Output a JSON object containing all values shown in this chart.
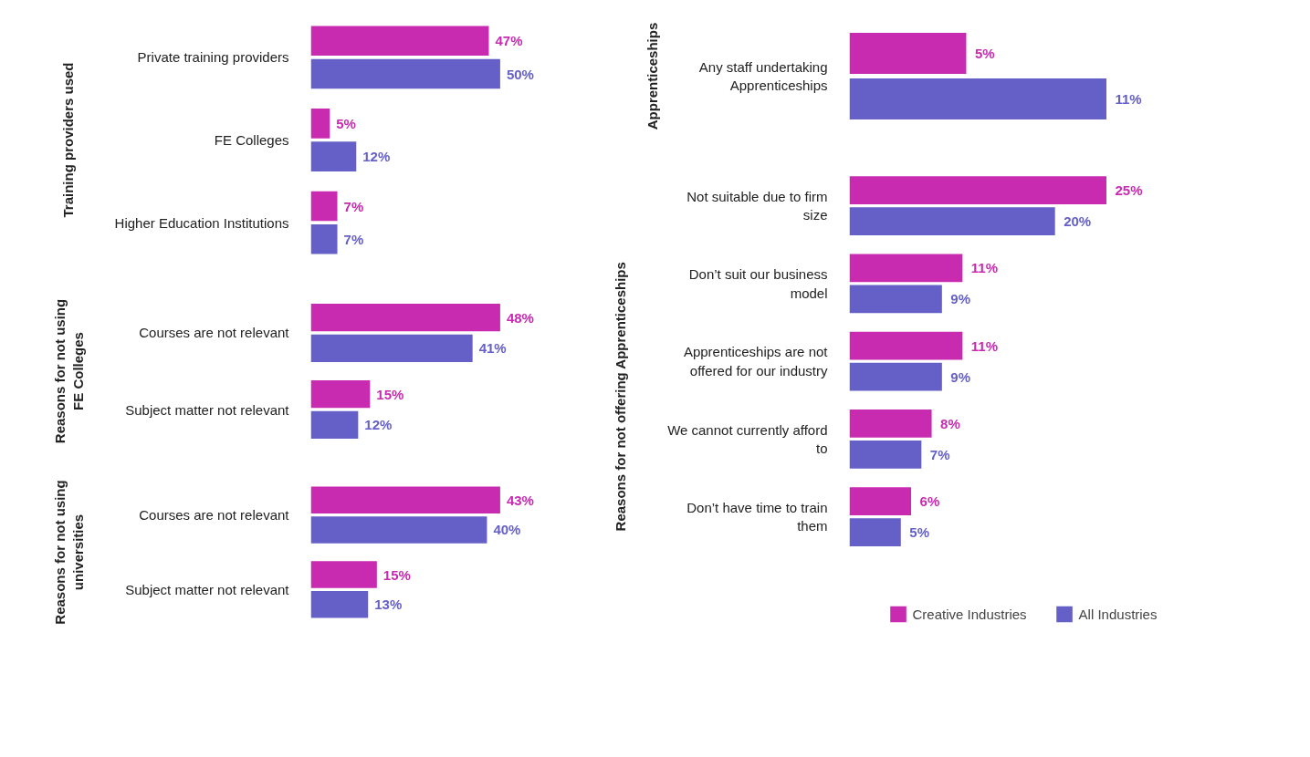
{
  "chart_data": [
    {
      "type": "bar",
      "orientation": "horizontal",
      "ylabel": "Training providers used",
      "categories": [
        "Private training providers",
        "FE Colleges",
        "Higher Education Institutions"
      ],
      "series": [
        {
          "color": "#c92bb0",
          "values": [
            47,
            5,
            7
          ],
          "value_labels": [
            "47%",
            "5%",
            "7%"
          ]
        },
        {
          "color": "#6560c8",
          "values": [
            50,
            12,
            7
          ],
          "value_labels": [
            "50%",
            "12%",
            "7%"
          ]
        }
      ]
    },
    {
      "type": "bar",
      "orientation": "horizontal",
      "ylabel": "Reasons for not using FE Colleges",
      "categories": [
        "Courses are not relevant",
        "Subject matter not relevant"
      ],
      "series": [
        {
          "color": "#c92bb0",
          "values": [
            48,
            15
          ],
          "value_labels": [
            "48%",
            "15%"
          ]
        },
        {
          "color": "#6560c8",
          "values": [
            41,
            12
          ],
          "value_labels": [
            "41%",
            "12%"
          ]
        }
      ]
    },
    {
      "type": "bar",
      "orientation": "horizontal",
      "ylabel": "Reasons for not using universities",
      "categories": [
        "Courses are not relevant",
        "Subject matter not relevant"
      ],
      "series": [
        {
          "color": "#c92bb0",
          "values": [
            43,
            15
          ],
          "value_labels": [
            "43%",
            "15%"
          ]
        },
        {
          "color": "#6560c8",
          "values": [
            40,
            13
          ],
          "value_labels": [
            "40%",
            "13%"
          ]
        }
      ]
    },
    {
      "type": "bar",
      "orientation": "horizontal",
      "ylabel": "Apprenticeships",
      "categories": [
        "Any staff undertaking Apprenticeships"
      ],
      "series": [
        {
          "color": "#c92bb0",
          "values": [
            5
          ],
          "value_labels": [
            "5%"
          ]
        },
        {
          "color": "#6560c8",
          "values": [
            11
          ],
          "value_labels": [
            "11%"
          ]
        }
      ]
    },
    {
      "type": "bar",
      "orientation": "horizontal",
      "ylabel": "Reasons for not offering Apprenticeships",
      "legend": "bottom",
      "categories": [
        "Not suitable due to firm size",
        "Don’t suit our business model",
        "Apprenticeships are not offered for our industry",
        "We cannot currently afford to",
        "Don’t have time to train them"
      ],
      "series": [
        {
          "name": "Creative Industries",
          "color": "#c92bb0",
          "values": [
            25,
            11,
            11,
            8,
            6
          ],
          "value_labels": [
            "25%",
            "11%",
            "11%",
            "8%",
            "6%"
          ]
        },
        {
          "name": "All Industries",
          "color": "#6560c8",
          "values": [
            20,
            9,
            9,
            7,
            5
          ],
          "value_labels": [
            "20%",
            "9%",
            "9%",
            "7%",
            "5%"
          ]
        }
      ]
    }
  ]
}
